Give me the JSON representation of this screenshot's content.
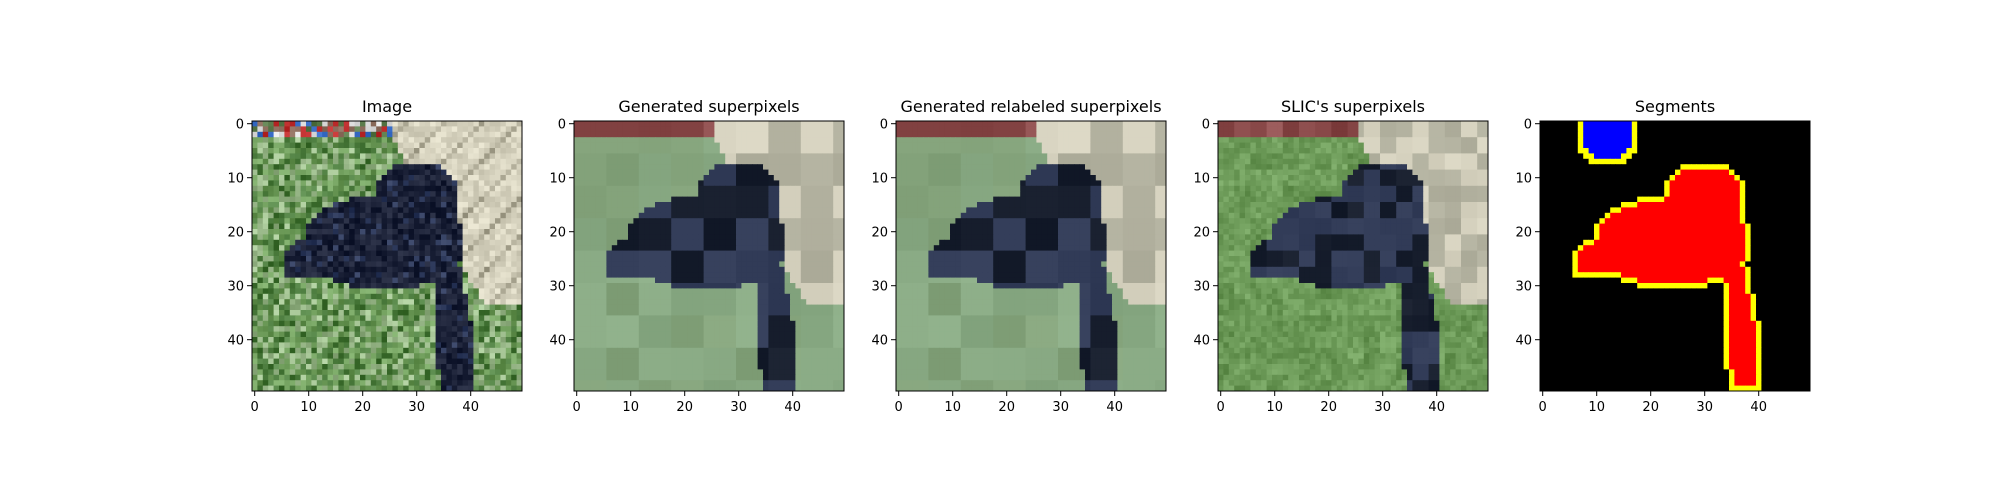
{
  "chart_data": [
    {
      "type": "image",
      "title": "Image",
      "xlim": [
        0,
        49
      ],
      "ylim": [
        0,
        49
      ],
      "xticks": [
        0,
        10,
        20,
        30,
        40
      ],
      "yticks": [
        0,
        10,
        20,
        30,
        40
      ],
      "content": "photo-dog-on-grass"
    },
    {
      "type": "image",
      "title": "Generated superpixels",
      "xlim": [
        0,
        49
      ],
      "ylim": [
        0,
        49
      ],
      "xticks": [
        0,
        10,
        20,
        30,
        40
      ],
      "yticks": [
        0,
        10,
        20,
        30,
        40
      ],
      "content": "superpixel-mean-colors"
    },
    {
      "type": "image",
      "title": "Generated relabeled superpixels",
      "xlim": [
        0,
        49
      ],
      "ylim": [
        0,
        49
      ],
      "xticks": [
        0,
        10,
        20,
        30,
        40
      ],
      "yticks": [
        0,
        10,
        20,
        30,
        40
      ],
      "content": "superpixel-mean-colors"
    },
    {
      "type": "image",
      "title": "SLIC's superpixels",
      "xlim": [
        0,
        49
      ],
      "ylim": [
        0,
        49
      ],
      "xticks": [
        0,
        10,
        20,
        30,
        40
      ],
      "yticks": [
        0,
        10,
        20,
        30,
        40
      ],
      "content": "slic-superpixel-colors"
    },
    {
      "type": "image",
      "title": "Segments",
      "xlim": [
        0,
        49
      ],
      "ylim": [
        0,
        49
      ],
      "xticks": [
        0,
        10,
        20,
        30,
        40
      ],
      "yticks": [
        0,
        10,
        20,
        30,
        40
      ],
      "content": "segment-mask",
      "colors": {
        "background": "#000000",
        "segment_1": "#0000ff",
        "segment_2": "#ff0000",
        "boundary": "#ffff00"
      }
    }
  ],
  "palette": {
    "grass": "#6c9a58",
    "grass_dark": "#4a7a3c",
    "grass_light": "#9ab98a",
    "dog": "#1c2238",
    "dog_light": "#2e3a5c",
    "wall": "#d8d4c0",
    "wall_dark": "#a8a490",
    "sp_grass": "#7fa07a",
    "sp_grass2": "#8fae86",
    "sp_dark": "#1e2534",
    "sp_blue": "#2a3450",
    "sp_wall": "#cfcbb8",
    "sp_wall2": "#b9b8a6"
  }
}
